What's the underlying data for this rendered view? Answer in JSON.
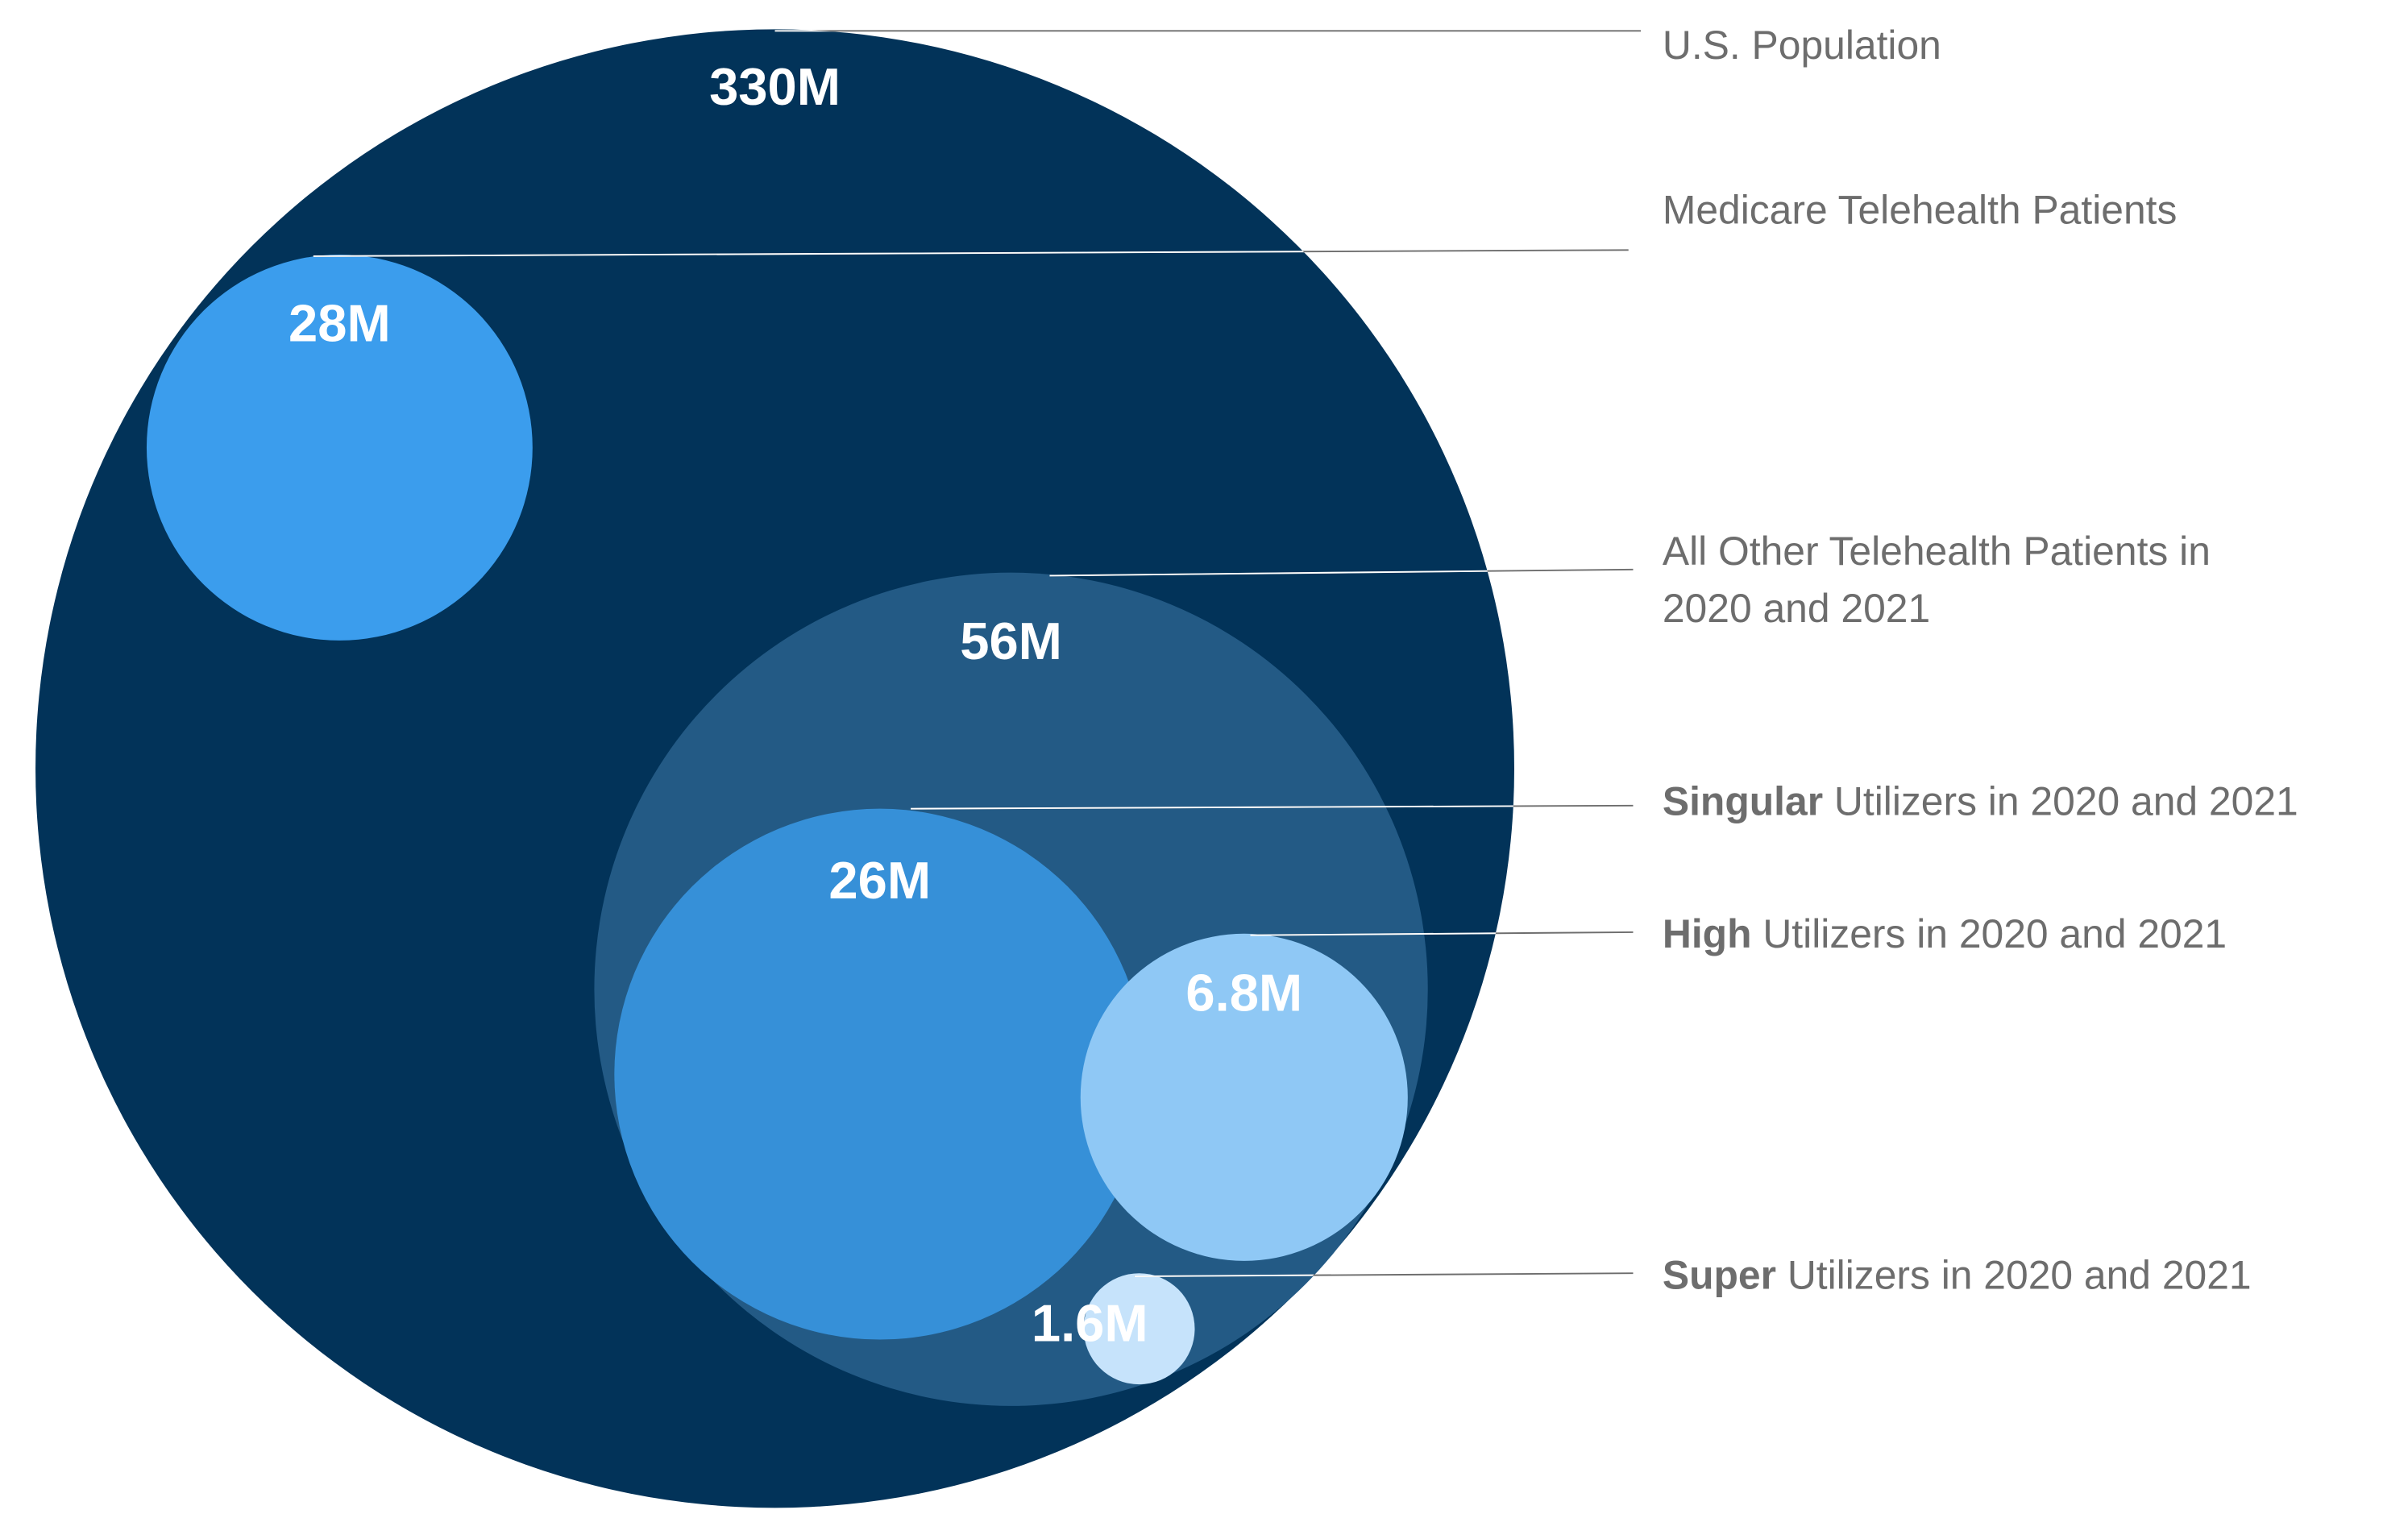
{
  "chart_data": {
    "type": "bubble",
    "title": "",
    "units": "people",
    "bubbles": [
      {
        "id": "us",
        "value_label": "330M",
        "value": 330000000,
        "label_bold": "",
        "label": "U.S. Population",
        "color": "#023359"
      },
      {
        "id": "medicare",
        "value_label": "28M",
        "value": 28000000,
        "label_bold": "",
        "label": "Medicare Telehealth Patients",
        "color": "#3b9ded"
      },
      {
        "id": "other",
        "value_label": "56M",
        "value": 56000000,
        "label_bold": "",
        "label": "All Other Telehealth Patients in",
        "label_line2": "2020 and 2021",
        "color": "#235a85"
      },
      {
        "id": "singular",
        "value_label": "26M",
        "value": 26000000,
        "label_bold": "Singular",
        "label": " Utilizers in 2020 and 2021",
        "color": "#3690d8"
      },
      {
        "id": "high",
        "value_label": "6.8M",
        "value": 6800000,
        "label_bold": "High",
        "label": " Utilizers in 2020 and 2021",
        "color": "#8fc8f5"
      },
      {
        "id": "super",
        "value_label": "1.6M",
        "value": 1600000,
        "label_bold": "Super",
        "label": " Utilizers in 2020 and 2021",
        "color": "#c6e3fb"
      }
    ],
    "nesting": {
      "us": [
        "medicare",
        "other"
      ],
      "other": [
        "singular",
        "high",
        "super"
      ]
    },
    "leader_line_color": "#6d6d6d"
  }
}
